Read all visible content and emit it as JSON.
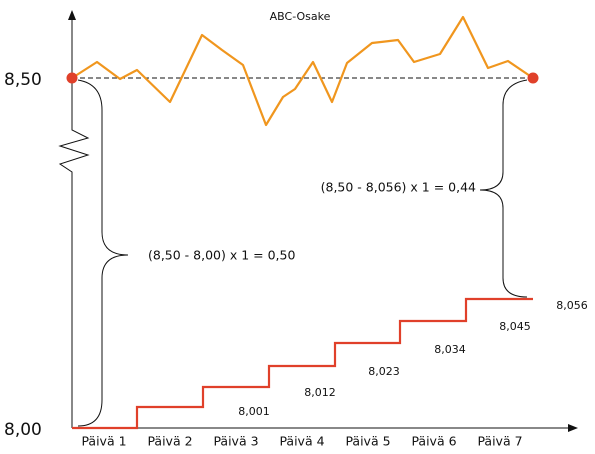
{
  "title": "ABC-Osake",
  "y_labels": [
    "8,50",
    "8,00"
  ],
  "x_labels": [
    "Päivä 1",
    "Päivä 2",
    "Päivä 3",
    "Päivä 4",
    "Päivä 5",
    "Päivä 6",
    "Päivä 7"
  ],
  "step_labels": [
    "8,001",
    "8,012",
    "8,023",
    "8,034",
    "8,045",
    "8,056"
  ],
  "annotations": [
    "(8,50 - 8,00) x 1 = 0,50",
    "(8,50 - 8,056) x 1 = 0,44"
  ]
}
